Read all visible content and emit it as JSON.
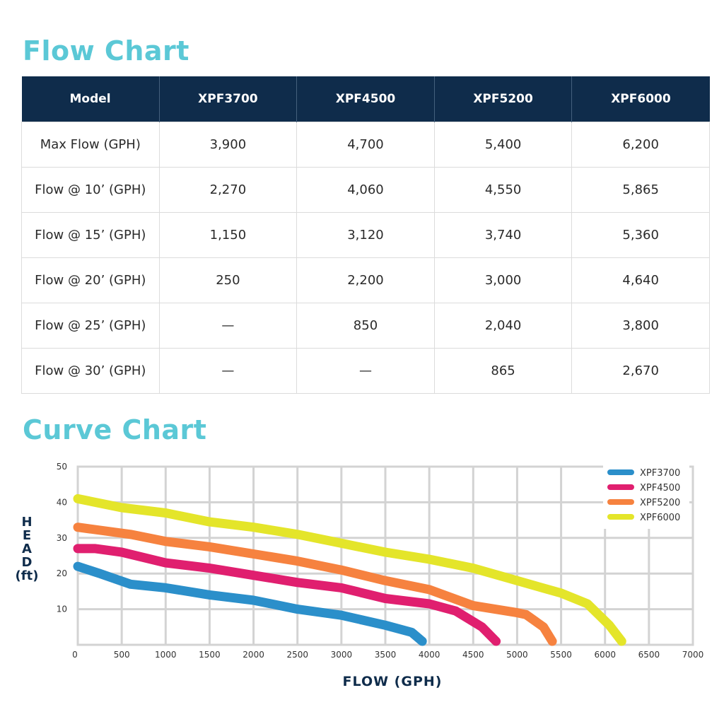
{
  "flow_chart": {
    "title": "Flow Chart",
    "headers": [
      "Model",
      "XPF3700",
      "XPF4500",
      "XPF5200",
      "XPF6000"
    ],
    "rows": [
      [
        "Max Flow (GPH)",
        "3,900",
        "4,700",
        "5,400",
        "6,200"
      ],
      [
        "Flow @ 10’ (GPH)",
        "2,270",
        "4,060",
        "4,550",
        "5,865"
      ],
      [
        "Flow @ 15’ (GPH)",
        "1,150",
        "3,120",
        "3,740",
        "5,360"
      ],
      [
        "Flow @ 20’ (GPH)",
        "250",
        "2,200",
        "3,000",
        "4,640"
      ],
      [
        "Flow @ 25’ (GPH)",
        "—",
        "850",
        "2,040",
        "3,800"
      ],
      [
        "Flow @ 30’ (GPH)",
        "—",
        "—",
        "865",
        "2,670"
      ]
    ]
  },
  "curve_chart": {
    "title": "Curve Chart"
  },
  "chart_data": {
    "type": "line",
    "title": "Curve Chart",
    "xlabel": "FLOW (GPH)",
    "ylabel_lines": [
      "H",
      "E",
      "A",
      "D",
      "(ft)"
    ],
    "xlim": [
      0,
      7000
    ],
    "ylim": [
      0,
      50
    ],
    "x_ticks": [
      "0",
      "500",
      "1000",
      "1500",
      "2000",
      "2500",
      "3000",
      "3500",
      "4000",
      "4500",
      "5000",
      "5500",
      "6000",
      "6500",
      "7000"
    ],
    "y_ticks": [
      "10",
      "20",
      "30",
      "40",
      "50"
    ],
    "grid": true,
    "legend_position": "top-right",
    "series": [
      {
        "name": "XPF3700",
        "color": "#2b8fca",
        "points": [
          [
            0,
            22
          ],
          [
            250,
            20
          ],
          [
            600,
            17
          ],
          [
            1000,
            16
          ],
          [
            1500,
            14
          ],
          [
            2000,
            12.5
          ],
          [
            2500,
            10
          ],
          [
            3000,
            8.3
          ],
          [
            3500,
            5.5
          ],
          [
            3800,
            3.5
          ],
          [
            3920,
            1
          ]
        ]
      },
      {
        "name": "XPF4500",
        "color": "#e01f6f",
        "points": [
          [
            0,
            27
          ],
          [
            200,
            27
          ],
          [
            500,
            26
          ],
          [
            1000,
            23
          ],
          [
            1500,
            21.5
          ],
          [
            2000,
            19.5
          ],
          [
            2500,
            17.5
          ],
          [
            3000,
            16
          ],
          [
            3500,
            13
          ],
          [
            4000,
            11.5
          ],
          [
            4300,
            9.5
          ],
          [
            4600,
            5
          ],
          [
            4760,
            1
          ]
        ]
      },
      {
        "name": "XPF5200",
        "color": "#f6823f",
        "points": [
          [
            0,
            33
          ],
          [
            600,
            31
          ],
          [
            1000,
            29
          ],
          [
            1500,
            27.5
          ],
          [
            2000,
            25.5
          ],
          [
            2500,
            23.5
          ],
          [
            3000,
            21
          ],
          [
            3500,
            18
          ],
          [
            4000,
            15.5
          ],
          [
            4500,
            11
          ],
          [
            5000,
            9
          ],
          [
            5100,
            8.5
          ],
          [
            5300,
            5
          ],
          [
            5400,
            1
          ]
        ]
      },
      {
        "name": "XPF6000",
        "color": "#e4e52a",
        "points": [
          [
            0,
            41
          ],
          [
            500,
            38.5
          ],
          [
            1000,
            37
          ],
          [
            1500,
            34.5
          ],
          [
            2000,
            33
          ],
          [
            2500,
            31
          ],
          [
            3000,
            28.5
          ],
          [
            3500,
            26
          ],
          [
            4000,
            24
          ],
          [
            4500,
            21.5
          ],
          [
            5000,
            18
          ],
          [
            5500,
            14.5
          ],
          [
            5800,
            11.5
          ],
          [
            6050,
            5.5
          ],
          [
            6190,
            1
          ]
        ]
      }
    ]
  }
}
